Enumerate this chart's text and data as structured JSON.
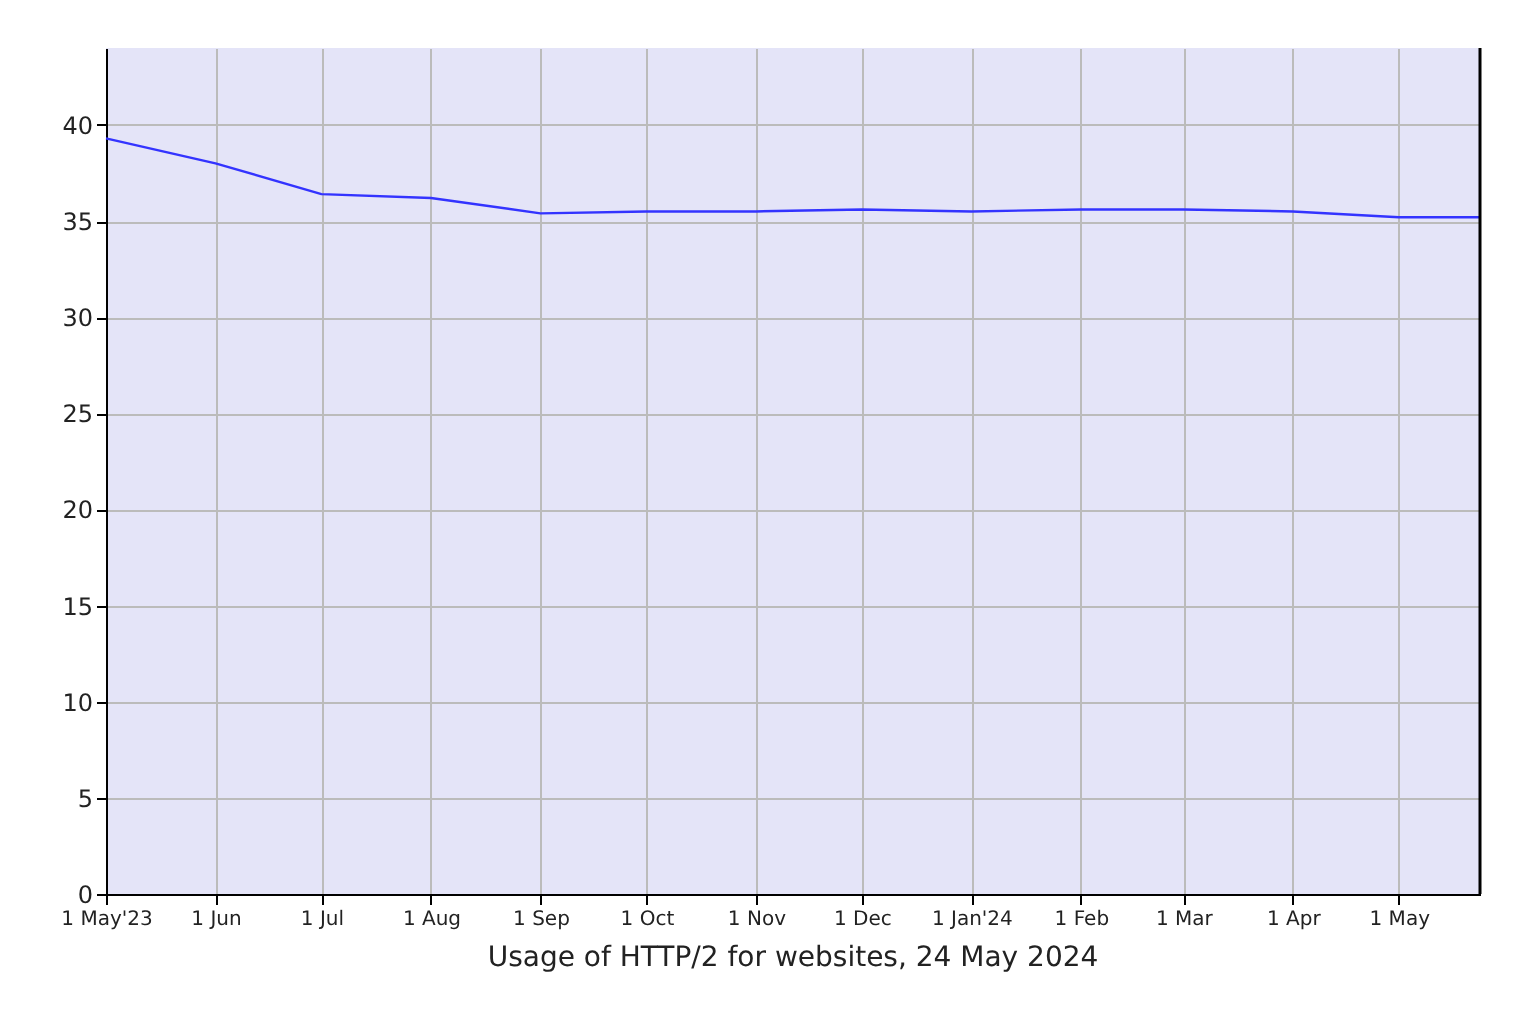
{
  "chart_data": {
    "type": "line",
    "title": "Usage of HTTP/2 for websites, 24 May 2024",
    "x": [
      "2023-05-01",
      "2023-06-01",
      "2023-07-01",
      "2023-08-01",
      "2023-09-01",
      "2023-10-01",
      "2023-11-01",
      "2023-12-01",
      "2024-01-01",
      "2024-02-01",
      "2024-03-01",
      "2024-04-01",
      "2024-05-01",
      "2024-05-24"
    ],
    "series": [
      {
        "color": "#3333ff",
        "values": [
          39.3,
          38.0,
          36.4,
          36.2,
          35.4,
          35.5,
          35.5,
          35.6,
          35.5,
          35.6,
          35.6,
          35.5,
          35.2,
          35.2
        ]
      }
    ],
    "xlim": [
      "2023-05-01",
      "2024-05-24"
    ],
    "xticks": [
      {
        "value": "2023-05-01",
        "label": "1 May'23"
      },
      {
        "value": "2023-06-01",
        "label": "1 Jun"
      },
      {
        "value": "2023-07-01",
        "label": "1 Jul"
      },
      {
        "value": "2023-08-01",
        "label": "1 Aug"
      },
      {
        "value": "2023-09-01",
        "label": "1 Sep"
      },
      {
        "value": "2023-10-01",
        "label": "1 Oct"
      },
      {
        "value": "2023-11-01",
        "label": "1 Nov"
      },
      {
        "value": "2023-12-01",
        "label": "1 Dec"
      },
      {
        "value": "2024-01-01",
        "label": "1 Jan'24"
      },
      {
        "value": "2024-02-01",
        "label": "1 Feb"
      },
      {
        "value": "2024-03-01",
        "label": "1 Mar"
      },
      {
        "value": "2024-04-01",
        "label": "1 Apr"
      },
      {
        "value": "2024-05-01",
        "label": "1 May"
      }
    ],
    "ylim": [
      0,
      44
    ],
    "yticks": [
      0,
      5,
      10,
      15,
      20,
      25,
      30,
      35,
      40
    ],
    "grid": true,
    "marker": "none",
    "line_style": "solid"
  }
}
